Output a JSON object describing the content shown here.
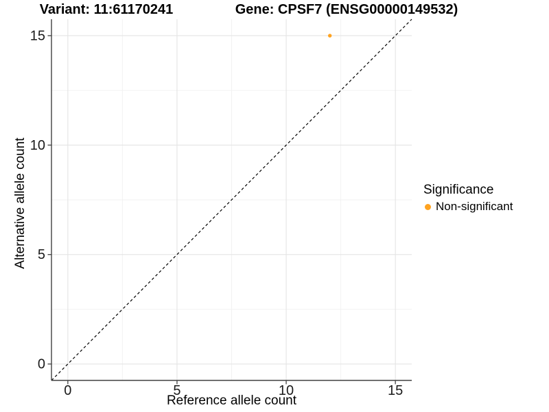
{
  "chart_data": {
    "type": "scatter",
    "title_variant": "Variant: 11:61170241",
    "title_gene": "Gene: CPSF7 (ENSG00000149532)",
    "xlabel": "Reference allele count",
    "ylabel": "Alternative allele count",
    "xlim": [
      -0.75,
      15.75
    ],
    "ylim": [
      -0.75,
      15.75
    ],
    "xticks": [
      0,
      5,
      10,
      15
    ],
    "yticks": [
      0,
      5,
      10,
      15
    ],
    "xtick_labels": [
      "0",
      "5",
      "10",
      "15"
    ],
    "ytick_labels": [
      "0",
      "5",
      "10",
      "15"
    ],
    "xticks_minor": [
      2.5,
      7.5,
      12.5
    ],
    "yticks_minor": [
      2.5,
      7.5,
      12.5
    ],
    "grid": true,
    "legend_position": "right",
    "identity_line": {
      "style": "dashed",
      "from": [
        -0.75,
        -0.75
      ],
      "to": [
        15.75,
        15.75
      ],
      "color": "#000000"
    },
    "series": [
      {
        "name": "Non-significant",
        "color": "#FFA320",
        "points": [
          [
            12,
            15
          ]
        ]
      }
    ],
    "legend": {
      "title": "Significance"
    },
    "colors": {
      "grid_major": "#E4E4E4",
      "grid_minor": "#F2F2F2",
      "axis": "#404040",
      "tick_text": "#1A1A1A",
      "background": "#FFFFFF"
    }
  }
}
